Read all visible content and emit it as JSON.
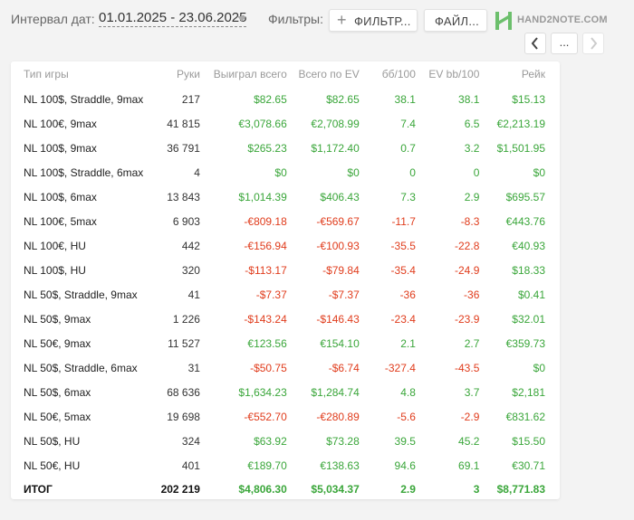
{
  "header": {
    "date_label": "Интервал дат:",
    "date_value": "01.01.2025 - 23.06.2025",
    "filters_label": "Фильтры:",
    "filter_button": "ФИЛЬТР...",
    "file_button": "ФАЙЛ...",
    "logo_text": "HAND2NOTE.COM",
    "more_button": "...",
    "accent_color": "#3aa63a"
  },
  "table": {
    "columns": [
      "Тип игры",
      "Руки",
      "Выиграл всего",
      "Всего по EV",
      "бб/100",
      "EV bb/100",
      "Рейк"
    ],
    "rows": [
      {
        "game": "NL 100$, Straddle, 9max",
        "hands": "217",
        "won": "$82.65",
        "ev": "$82.65",
        "bb": "38.1",
        "evbb": "38.1",
        "rake": "$15.13"
      },
      {
        "game": "NL 100€, 9max",
        "hands": "41 815",
        "won": "€3,078.66",
        "ev": "€2,708.99",
        "bb": "7.4",
        "evbb": "6.5",
        "rake": "€2,213.19"
      },
      {
        "game": "NL 100$, 9max",
        "hands": "36 791",
        "won": "$265.23",
        "ev": "$1,172.40",
        "bb": "0.7",
        "evbb": "3.2",
        "rake": "$1,501.95"
      },
      {
        "game": "NL 100$, Straddle, 6max",
        "hands": "4",
        "won": "$0",
        "ev": "$0",
        "bb": "0",
        "evbb": "0",
        "rake": "$0"
      },
      {
        "game": "NL 100$, 6max",
        "hands": "13 843",
        "won": "$1,014.39",
        "ev": "$406.43",
        "bb": "7.3",
        "evbb": "2.9",
        "rake": "$695.57"
      },
      {
        "game": "NL 100€, 5max",
        "hands": "6 903",
        "won": "-€809.18",
        "ev": "-€569.67",
        "bb": "-11.7",
        "evbb": "-8.3",
        "rake": "€443.76"
      },
      {
        "game": "NL 100€, HU",
        "hands": "442",
        "won": "-€156.94",
        "ev": "-€100.93",
        "bb": "-35.5",
        "evbb": "-22.8",
        "rake": "€40.93"
      },
      {
        "game": "NL 100$, HU",
        "hands": "320",
        "won": "-$113.17",
        "ev": "-$79.84",
        "bb": "-35.4",
        "evbb": "-24.9",
        "rake": "$18.33"
      },
      {
        "game": "NL 50$, Straddle, 9max",
        "hands": "41",
        "won": "-$7.37",
        "ev": "-$7.37",
        "bb": "-36",
        "evbb": "-36",
        "rake": "$0.41"
      },
      {
        "game": "NL 50$, 9max",
        "hands": "1 226",
        "won": "-$143.24",
        "ev": "-$146.43",
        "bb": "-23.4",
        "evbb": "-23.9",
        "rake": "$32.01"
      },
      {
        "game": "NL 50€, 9max",
        "hands": "11 527",
        "won": "€123.56",
        "ev": "€154.10",
        "bb": "2.1",
        "evbb": "2.7",
        "rake": "€359.73"
      },
      {
        "game": "NL 50$, Straddle, 6max",
        "hands": "31",
        "won": "-$50.75",
        "ev": "-$6.74",
        "bb": "-327.4",
        "evbb": "-43.5",
        "rake": "$0"
      },
      {
        "game": "NL 50$, 6max",
        "hands": "68 636",
        "won": "$1,634.23",
        "ev": "$1,284.74",
        "bb": "4.8",
        "evbb": "3.7",
        "rake": "$2,181"
      },
      {
        "game": "NL 50€, 5max",
        "hands": "19 698",
        "won": "-€552.70",
        "ev": "-€280.89",
        "bb": "-5.6",
        "evbb": "-2.9",
        "rake": "€831.62"
      },
      {
        "game": "NL 50$, HU",
        "hands": "324",
        "won": "$63.92",
        "ev": "$73.28",
        "bb": "39.5",
        "evbb": "45.2",
        "rake": "$15.50"
      },
      {
        "game": "NL 50€, HU",
        "hands": "401",
        "won": "€189.70",
        "ev": "€138.63",
        "bb": "94.6",
        "evbb": "69.1",
        "rake": "€30.71"
      }
    ],
    "total": {
      "game": "ИТОГ",
      "hands": "202 219",
      "won": "$4,806.30",
      "ev": "$5,034.37",
      "bb": "2.9",
      "evbb": "3",
      "rake": "$8,771.83"
    }
  }
}
